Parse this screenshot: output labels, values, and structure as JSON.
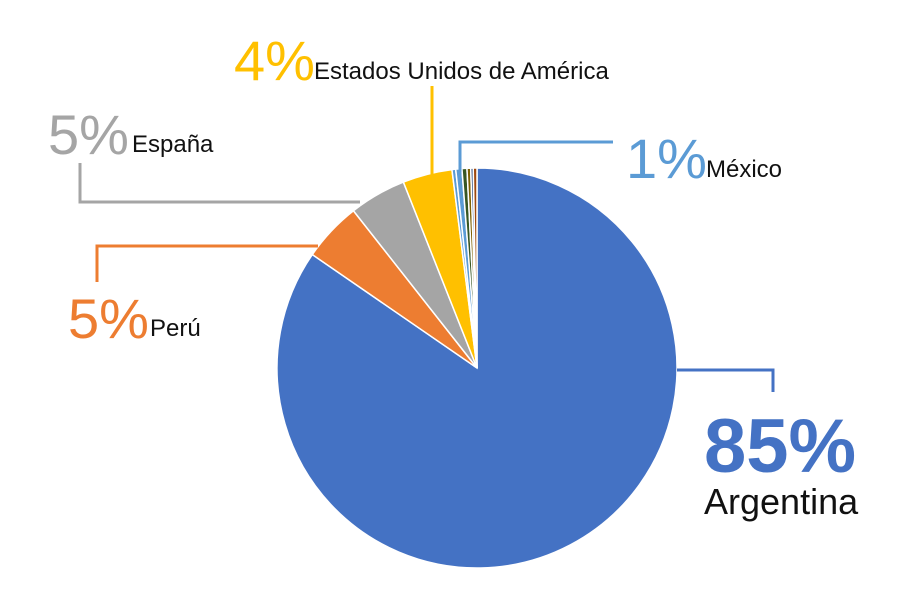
{
  "chart_data": {
    "type": "pie",
    "slices": [
      {
        "label": "Argentina",
        "percent_label": "85%",
        "value": 84.6,
        "color": "#4472c4"
      },
      {
        "label": "Perú",
        "percent_label": "5%",
        "value": 4.8,
        "color": "#ed7d31"
      },
      {
        "label": "España",
        "percent_label": "5%",
        "value": 4.6,
        "color": "#a5a5a5"
      },
      {
        "label": "Estados Unidos de América",
        "percent_label": "4%",
        "value": 4.0,
        "color": "#ffc000"
      },
      {
        "label": "",
        "percent_label": "",
        "value": 0.3,
        "color": "#5b9bd5"
      },
      {
        "label": "México",
        "percent_label": "1%",
        "value": 0.5,
        "color": "#5b9bd5"
      },
      {
        "label": "",
        "percent_label": "",
        "value": 0.4,
        "color": "#375623"
      },
      {
        "label": "",
        "percent_label": "",
        "value": 0.3,
        "color": "#7f6000"
      },
      {
        "label": "",
        "percent_label": "",
        "value": 0.2,
        "color": "#264478"
      },
      {
        "label": "",
        "percent_label": "",
        "value": 0.3,
        "color": "#9e480e"
      }
    ],
    "title": "",
    "legend": "none"
  }
}
